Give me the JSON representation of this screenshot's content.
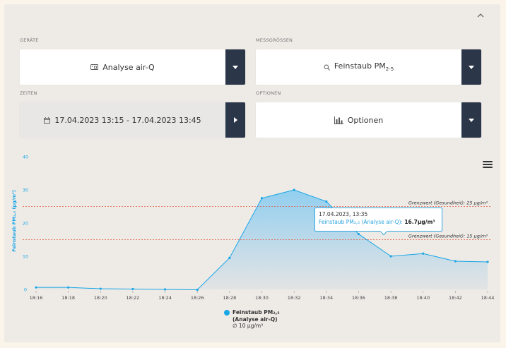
{
  "panel": {
    "collapse_icon": "chevron-up-icon"
  },
  "fields": {
    "devices": {
      "label": "GERÄTE",
      "value": "Analyse air-Q",
      "icon": "device-icon"
    },
    "measurands": {
      "label": "MESSGRÖSSEN",
      "value_main": "Feinstaub PM",
      "value_sub": "2-5",
      "icon": "search-icon"
    },
    "times": {
      "label": "ZEITEN",
      "value": "17.04.2023 13:15 - 17.04.2023 13:45",
      "icon": "calendar-icon"
    },
    "options": {
      "label": "OPTIONEN",
      "value": "Optionen",
      "icon": "bar-chart-icon"
    }
  },
  "chart_data": {
    "type": "area",
    "ylabel": "Feinstaub PM₂,₅ (µg/m³)",
    "ylim": [
      0,
      40
    ],
    "yticks": [
      "0",
      "10",
      "20",
      "30",
      "40"
    ],
    "categories": [
      "18:16",
      "18:18",
      "18:20",
      "18:22",
      "18:24",
      "18:26",
      "18:28",
      "18:30",
      "18:32",
      "18:34",
      "18:36",
      "18:38",
      "18:40",
      "18:42",
      "18:44"
    ],
    "series": [
      {
        "name": "Feinstaub PM₂,₅",
        "values": [
          0.6,
          0.6,
          0.2,
          0.1,
          0.0,
          -0.1,
          9.5,
          27.5,
          30.0,
          26.5,
          16.7,
          10.0,
          10.8,
          8.5,
          8.3
        ]
      }
    ],
    "thresholds": [
      {
        "value": 25,
        "label": "Grenzwert (Gesundheit): 25 µg/m³"
      },
      {
        "value": 15,
        "label": "Grenzwert (Gesundheit): 15 µg/m³"
      }
    ],
    "grid": false,
    "legend": {
      "placement": "bottom-center",
      "name": "Feinstaub PM₂,₅",
      "device": "(Analyse air-Q)",
      "avg": "∅ 10 µg/m³"
    },
    "tooltip": {
      "title": "17.04.2023, 13:35",
      "series_label": "Feinstaub PM₂,₅ (Analyse air-Q):",
      "value": "16.7µg/m³",
      "point_index": 10
    }
  },
  "colors": {
    "accent": "#1aa6e6",
    "threshold": "#e0573e",
    "dark_button": "#2b3649"
  }
}
